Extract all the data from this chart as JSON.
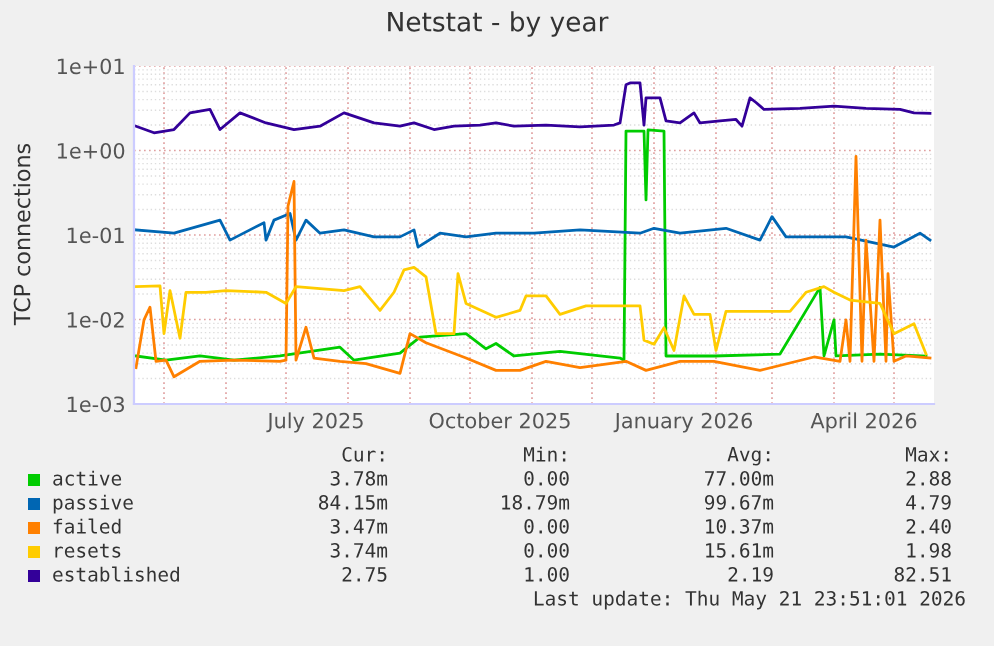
{
  "chart_data": {
    "type": "line",
    "title": "Netstat - by year",
    "ylabel": "TCP connections",
    "log": "y",
    "xlim": [
      "2025-04-16",
      "2026-05-21"
    ],
    "xticks": [
      {
        "value": "2025-07-16",
        "label": "July 2025"
      },
      {
        "value": "2025-10-16",
        "label": "October 2025"
      },
      {
        "value": "2026-01-16",
        "label": "January 2026"
      },
      {
        "value": "2026-04-16",
        "label": "April 2026"
      }
    ],
    "ylim": [
      0.001,
      10
    ],
    "yticks": [
      {
        "value": 0.001,
        "label": "1e-03"
      },
      {
        "value": 0.01,
        "label": "1e-02"
      },
      {
        "value": 0.1,
        "label": "1e-01"
      },
      {
        "value": 1,
        "label": "1e+00"
      },
      {
        "value": 10,
        "label": "1e+01"
      }
    ],
    "grid": true,
    "legend": "bottom",
    "line_style": "solid",
    "series": [
      {
        "name": "active",
        "color": "#00cc00",
        "x": [
          "2025-04-17",
          "2025-05-02",
          "2025-05-19",
          "2025-06-05",
          "2025-06-28",
          "2025-07-28",
          "2025-08-04",
          "2025-08-27",
          "2025-09-06",
          "2025-09-29",
          "2025-10-09",
          "2025-10-14",
          "2025-10-23",
          "2025-11-15",
          "2025-12-15",
          "2025-12-17",
          "2025-12-18",
          "2025-12-27",
          "2025-12-28",
          "2025-12-29",
          "2026-01-06",
          "2026-01-07",
          "2026-01-31",
          "2026-03-05",
          "2026-03-25",
          "2026-03-27",
          "2026-04-01",
          "2026-04-02",
          "2026-04-24",
          "2026-05-17"
        ],
        "values": [
          0.0037,
          0.0033,
          0.0037,
          0.0033,
          0.0037,
          0.0047,
          0.0033,
          0.004,
          0.0062,
          0.0068,
          0.0045,
          0.0052,
          0.0037,
          0.0042,
          0.0035,
          0.0033,
          1.7,
          1.7,
          0.26,
          1.75,
          1.7,
          0.0037,
          0.0037,
          0.0039,
          0.024,
          0.0037,
          0.0099,
          0.0037,
          0.0039,
          0.0037
        ]
      },
      {
        "name": "passive",
        "color": "#0066b3",
        "x": [
          "2025-04-17",
          "2025-05-06",
          "2025-05-29",
          "2025-06-03",
          "2025-06-20",
          "2025-06-21",
          "2025-06-25",
          "2025-07-03",
          "2025-07-06",
          "2025-07-11",
          "2025-07-18",
          "2025-07-30",
          "2025-08-14",
          "2025-08-27",
          "2025-09-03",
          "2025-09-05",
          "2025-09-16",
          "2025-09-29",
          "2025-10-14",
          "2025-11-02",
          "2025-11-25",
          "2025-12-25",
          "2026-01-01",
          "2026-01-14",
          "2026-02-06",
          "2026-02-23",
          "2026-03-01",
          "2026-03-08",
          "2026-04-07",
          "2026-05-01",
          "2026-05-14",
          "2026-05-19"
        ],
        "values": [
          0.115,
          0.105,
          0.15,
          0.087,
          0.14,
          0.087,
          0.15,
          0.18,
          0.087,
          0.15,
          0.105,
          0.115,
          0.095,
          0.095,
          0.115,
          0.072,
          0.105,
          0.095,
          0.105,
          0.105,
          0.115,
          0.105,
          0.12,
          0.105,
          0.12,
          0.087,
          0.165,
          0.095,
          0.095,
          0.072,
          0.105,
          0.087
        ]
      },
      {
        "name": "failed",
        "color": "#ff8000",
        "x": [
          "2025-04-17",
          "2025-04-21",
          "2025-04-24",
          "2025-04-27",
          "2025-05-02",
          "2025-05-06",
          "2025-05-19",
          "2025-06-05",
          "2025-06-28",
          "2025-07-01",
          "2025-07-02",
          "2025-07-05",
          "2025-07-06",
          "2025-07-11",
          "2025-07-15",
          "2025-07-28",
          "2025-08-10",
          "2025-08-27",
          "2025-09-01",
          "2025-09-09",
          "2025-09-29",
          "2025-10-14",
          "2025-10-26",
          "2025-11-08",
          "2025-11-25",
          "2025-12-18",
          "2025-12-28",
          "2026-01-14",
          "2026-01-31",
          "2026-02-23",
          "2026-03-22",
          "2026-04-04",
          "2026-04-07",
          "2026-04-09",
          "2026-04-12",
          "2026-04-15",
          "2026-04-17",
          "2026-04-21",
          "2026-04-24",
          "2026-04-27",
          "2026-04-28",
          "2026-05-01",
          "2026-05-07",
          "2026-05-19"
        ],
        "values": [
          0.0027,
          0.0099,
          0.014,
          0.0032,
          0.0033,
          0.0021,
          0.0032,
          0.0033,
          0.0032,
          0.0033,
          0.22,
          0.43,
          0.0033,
          0.0081,
          0.0035,
          0.0032,
          0.003,
          0.0023,
          0.0068,
          0.0053,
          0.0035,
          0.0025,
          0.0025,
          0.0032,
          0.0027,
          0.0032,
          0.0025,
          0.0032,
          0.0032,
          0.0025,
          0.0036,
          0.0032,
          0.0099,
          0.0032,
          0.85,
          0.0032,
          0.087,
          0.0032,
          0.15,
          0.0032,
          0.035,
          0.0032,
          0.0037,
          0.0035
        ]
      },
      {
        "name": "resets",
        "color": "#ffcc00",
        "x": [
          "2025-04-17",
          "2025-04-29",
          "2025-05-01",
          "2025-05-04",
          "2025-05-09",
          "2025-05-12",
          "2025-05-22",
          "2025-06-01",
          "2025-06-21",
          "2025-07-01",
          "2025-07-06",
          "2025-07-30",
          "2025-08-07",
          "2025-08-17",
          "2025-08-24",
          "2025-08-29",
          "2025-09-03",
          "2025-09-09",
          "2025-09-14",
          "2025-09-23",
          "2025-09-25",
          "2025-09-29",
          "2025-10-14",
          "2025-10-26",
          "2025-10-29",
          "2025-11-08",
          "2025-11-15",
          "2025-11-28",
          "2025-12-25",
          "2025-12-27",
          "2026-01-01",
          "2026-01-06",
          "2026-01-11",
          "2026-01-16",
          "2026-01-21",
          "2026-01-29",
          "2026-02-01",
          "2026-02-06",
          "2026-02-26",
          "2026-03-10",
          "2026-03-18",
          "2026-03-27",
          "2026-04-01",
          "2026-04-09",
          "2026-04-24",
          "2026-05-01",
          "2026-05-11",
          "2026-05-17"
        ],
        "values": [
          0.0245,
          0.025,
          0.0068,
          0.022,
          0.006,
          0.021,
          0.021,
          0.022,
          0.021,
          0.0155,
          0.0245,
          0.022,
          0.0245,
          0.0128,
          0.021,
          0.0386,
          0.0414,
          0.032,
          0.0068,
          0.0068,
          0.035,
          0.0155,
          0.0106,
          0.0128,
          0.019,
          0.019,
          0.0115,
          0.0145,
          0.0145,
          0.0057,
          0.0051,
          0.008,
          0.0043,
          0.019,
          0.0115,
          0.0115,
          0.0043,
          0.0125,
          0.0125,
          0.0125,
          0.021,
          0.0245,
          0.021,
          0.017,
          0.0155,
          0.0068,
          0.0089,
          0.0039
        ]
      },
      {
        "name": "established",
        "color": "#330099",
        "x": [
          "2025-04-17",
          "2025-04-26",
          "2025-05-06",
          "2025-05-14",
          "2025-05-24",
          "2025-05-29",
          "2025-06-08",
          "2025-06-21",
          "2025-07-05",
          "2025-07-18",
          "2025-07-30",
          "2025-08-14",
          "2025-08-27",
          "2025-09-03",
          "2025-09-13",
          "2025-09-23",
          "2025-10-06",
          "2025-10-14",
          "2025-10-23",
          "2025-11-08",
          "2025-11-25",
          "2025-12-12",
          "2025-12-15",
          "2025-12-18",
          "2025-12-20",
          "2025-12-25",
          "2025-12-27",
          "2025-12-28",
          "2026-01-04",
          "2026-01-07",
          "2026-01-14",
          "2026-01-21",
          "2026-01-24",
          "2026-02-03",
          "2026-02-11",
          "2026-02-14",
          "2026-02-18",
          "2026-02-21",
          "2026-02-25",
          "2026-03-15",
          "2026-04-01",
          "2026-04-17",
          "2026-05-04",
          "2026-05-11",
          "2026-05-19"
        ],
        "values": [
          1.94,
          1.62,
          1.77,
          2.79,
          3.06,
          1.77,
          2.79,
          2.12,
          1.77,
          1.94,
          2.79,
          2.12,
          1.94,
          2.12,
          1.77,
          1.94,
          2.0,
          2.12,
          1.94,
          2.0,
          1.9,
          2.0,
          2.12,
          6.0,
          6.3,
          6.3,
          2.0,
          4.2,
          4.2,
          2.24,
          2.12,
          2.79,
          2.12,
          2.24,
          2.33,
          1.94,
          4.2,
          3.7,
          3.06,
          3.16,
          3.35,
          3.16,
          3.06,
          2.79,
          2.75
        ]
      }
    ],
    "annotations": [
      "Cur:",
      "Min:",
      "Avg:",
      "Max:",
      "3.78m",
      "0.00",
      "77.00m",
      "2.88",
      "84.15m",
      "18.79m",
      "99.67m",
      "4.79",
      "3.47m",
      "0.00",
      "10.37m",
      "2.40",
      "3.74m",
      "0.00",
      "15.61m",
      "1.98",
      "2.75",
      "1.00",
      "2.19",
      "82.51",
      "Last update: Thu May 21 23:51:01 2026"
    ]
  }
}
